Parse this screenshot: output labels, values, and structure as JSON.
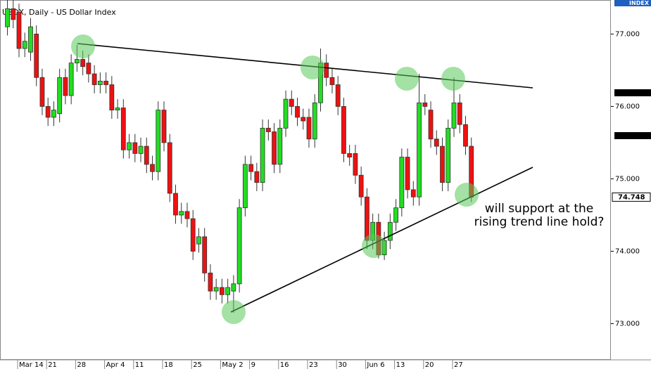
{
  "chart_data": {
    "type": "candlestick",
    "title": "USDX, Daily - US Dollar Index",
    "axis_badge": "INDEX",
    "annotation": [
      "will support at the",
      "rising trend line hold?"
    ],
    "categories": [
      null,
      null,
      "Mar 14",
      null,
      null,
      null,
      null,
      "21",
      null,
      null,
      null,
      null,
      "28",
      null,
      null,
      null,
      null,
      "Apr 4",
      null,
      null,
      null,
      null,
      "11",
      null,
      null,
      null,
      null,
      "18",
      null,
      null,
      null,
      null,
      "25",
      null,
      null,
      null,
      null,
      "May 2",
      null,
      null,
      null,
      null,
      "9",
      null,
      null,
      null,
      null,
      "16",
      null,
      null,
      null,
      null,
      "23",
      null,
      null,
      null,
      null,
      "30",
      null,
      null,
      null,
      null,
      "Jun 6",
      null,
      null,
      null,
      null,
      "13",
      null,
      null,
      null,
      null,
      "20",
      null,
      null,
      null,
      null,
      "27",
      null,
      null,
      null
    ],
    "open": [
      77.1,
      77.35,
      77.3,
      76.8,
      76.75,
      77.0,
      76.4,
      76.0,
      75.85,
      75.9,
      76.4,
      76.15,
      76.6,
      76.65,
      76.6,
      76.45,
      76.3,
      76.35,
      76.3,
      75.95,
      75.98,
      75.4,
      75.5,
      75.35,
      75.45,
      75.2,
      75.1,
      75.95,
      75.5,
      74.8,
      74.5,
      74.55,
      74.45,
      74.1,
      74.2,
      73.7,
      73.45,
      73.5,
      73.4,
      73.45,
      73.55,
      74.6,
      75.2,
      75.1,
      74.95,
      75.7,
      75.65,
      75.2,
      75.7,
      76.1,
      76.0,
      75.85,
      75.85,
      75.55,
      76.05,
      76.6,
      76.4,
      76.3,
      76.0,
      75.35,
      75.35,
      75.05,
      74.75,
      74.15,
      74.4,
      73.95,
      74.15,
      74.4,
      74.6,
      75.3,
      74.85,
      74.75,
      76.05,
      75.95,
      75.55,
      75.45,
      74.95,
      75.7,
      76.05,
      75.75,
      75.45
    ],
    "high": [
      77.47,
      77.47,
      77.42,
      77.02,
      77.22,
      77.12,
      76.52,
      76.12,
      76.07,
      76.52,
      76.52,
      76.72,
      76.85,
      76.77,
      76.72,
      76.57,
      76.47,
      76.47,
      76.42,
      76.1,
      76.1,
      75.62,
      75.62,
      75.57,
      75.57,
      75.32,
      76.07,
      76.07,
      75.62,
      74.92,
      74.67,
      74.67,
      74.57,
      74.32,
      74.32,
      73.82,
      73.62,
      73.62,
      73.62,
      73.67,
      74.72,
      75.32,
      75.32,
      75.22,
      75.82,
      75.82,
      75.77,
      75.82,
      76.22,
      76.22,
      76.12,
      75.97,
      75.97,
      76.17,
      76.8,
      76.72,
      76.52,
      76.42,
      76.12,
      75.47,
      75.47,
      75.17,
      74.87,
      74.52,
      74.52,
      74.27,
      74.52,
      74.72,
      75.42,
      75.42,
      74.97,
      76.45,
      76.17,
      76.07,
      75.67,
      75.57,
      75.82,
      76.4,
      76.17,
      75.87,
      75.57
    ],
    "low": [
      76.98,
      77.08,
      76.68,
      76.68,
      76.63,
      76.28,
      75.88,
      75.73,
      75.73,
      75.78,
      76.03,
      76.03,
      76.48,
      76.43,
      76.33,
      76.18,
      76.18,
      76.18,
      75.83,
      75.83,
      75.28,
      75.28,
      75.23,
      75.23,
      75.08,
      74.98,
      74.98,
      75.38,
      74.68,
      74.38,
      74.38,
      74.33,
      73.88,
      73.98,
      73.58,
      73.33,
      73.33,
      73.28,
      73.28,
      73.15,
      73.43,
      74.48,
      74.98,
      74.83,
      74.83,
      75.53,
      75.08,
      75.08,
      75.58,
      75.88,
      75.73,
      75.68,
      75.43,
      75.43,
      75.93,
      76.28,
      76.18,
      75.88,
      75.23,
      75.18,
      74.93,
      74.63,
      74.03,
      74.03,
      73.9,
      73.88,
      74.03,
      74.28,
      74.48,
      74.73,
      74.63,
      74.63,
      75.88,
      75.43,
      75.33,
      74.83,
      74.83,
      75.58,
      75.63,
      75.33,
      74.68
    ],
    "close": [
      77.35,
      77.2,
      76.8,
      76.9,
      77.1,
      76.4,
      76.0,
      75.85,
      75.95,
      76.4,
      76.15,
      76.6,
      76.65,
      76.55,
      76.45,
      76.3,
      76.35,
      76.3,
      75.95,
      75.98,
      75.4,
      75.5,
      75.35,
      75.45,
      75.2,
      75.1,
      75.95,
      75.5,
      74.8,
      74.5,
      74.55,
      74.45,
      74.0,
      74.2,
      73.7,
      73.45,
      73.5,
      73.4,
      73.5,
      73.55,
      74.6,
      75.2,
      75.1,
      74.95,
      75.7,
      75.65,
      75.2,
      75.7,
      76.1,
      76.0,
      75.85,
      75.8,
      75.55,
      76.05,
      76.6,
      76.4,
      76.3,
      76.0,
      75.35,
      75.3,
      75.05,
      74.75,
      74.15,
      74.4,
      73.95,
      74.15,
      74.4,
      74.6,
      75.3,
      74.85,
      74.75,
      76.05,
      76.0,
      75.55,
      75.45,
      74.95,
      75.7,
      76.05,
      75.75,
      75.45,
      74.748
    ],
    "last_value": 74.748,
    "up_color": "#22dd22",
    "down_color": "#ee1111",
    "ylim": [
      72.5,
      77.47
    ],
    "yticks": [
      {
        "value": 73,
        "label": "73.000"
      },
      {
        "value": 74,
        "label": "74.000"
      },
      {
        "value": 75,
        "label": "75.000"
      },
      {
        "value": 76,
        "label": "76.000"
      },
      {
        "value": 77,
        "label": "77.000"
      }
    ],
    "grid": false
  }
}
